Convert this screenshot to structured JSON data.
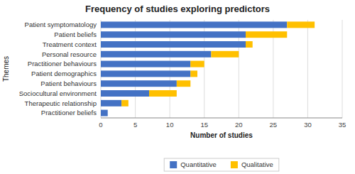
{
  "chart_data": {
    "type": "bar",
    "orientation": "horizontal",
    "stacked": true,
    "title": "Frequency of studies exploring predictors",
    "xlabel": "Number of studies",
    "ylabel": "Themes",
    "categories": [
      "Practitioner beliefs",
      "Therapeutic relationship",
      "Sociocultural environment",
      "Patient behaviours",
      "Patient demographics",
      "Practitioner behaviours",
      "Personal resource",
      "Treatment context",
      "Patient beliefs",
      "Patient symptomatology"
    ],
    "series": [
      {
        "name": "Quantitative",
        "color": "#4472C4",
        "values": [
          1,
          3,
          7,
          11,
          13,
          13,
          16,
          21,
          21,
          27
        ]
      },
      {
        "name": "Qualitative",
        "color": "#FFC000",
        "values": [
          0,
          1,
          4,
          2,
          1,
          2,
          4,
          1,
          6,
          4
        ]
      }
    ],
    "xlim": [
      0,
      35
    ],
    "xticks": [
      0,
      5,
      10,
      15,
      20,
      25,
      30,
      35
    ],
    "grid": true,
    "legend": "bottom"
  }
}
